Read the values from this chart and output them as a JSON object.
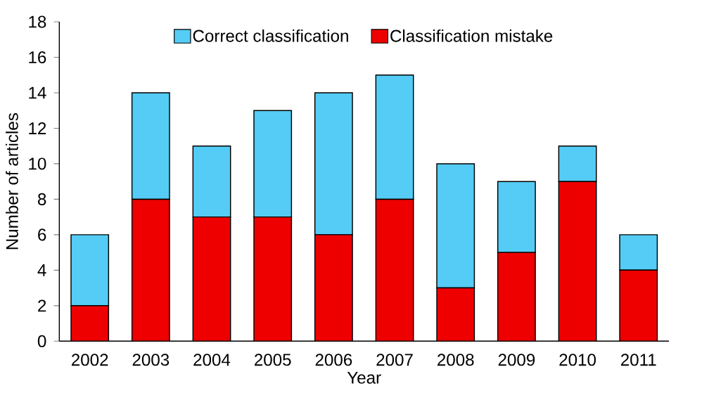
{
  "chart_data": {
    "type": "bar",
    "stacked": true,
    "xlabel": "Year",
    "ylabel": "Number of articles",
    "categories": [
      "2002",
      "2003",
      "2004",
      "2005",
      "2006",
      "2007",
      "2008",
      "2009",
      "2010",
      "2011"
    ],
    "series": [
      {
        "name": "Classification mistake",
        "color": "#ee0000",
        "values": [
          2,
          8,
          7,
          7,
          6,
          8,
          3,
          5,
          9,
          4
        ]
      },
      {
        "name": "Correct classification",
        "color": "#55ccf5",
        "values": [
          4,
          6,
          4,
          6,
          8,
          7,
          7,
          4,
          2,
          2
        ]
      }
    ],
    "ylim": [
      0,
      18
    ],
    "yticks": [
      0,
      2,
      4,
      6,
      8,
      10,
      12,
      14,
      16,
      18
    ],
    "legend": "top",
    "grid": false
  }
}
